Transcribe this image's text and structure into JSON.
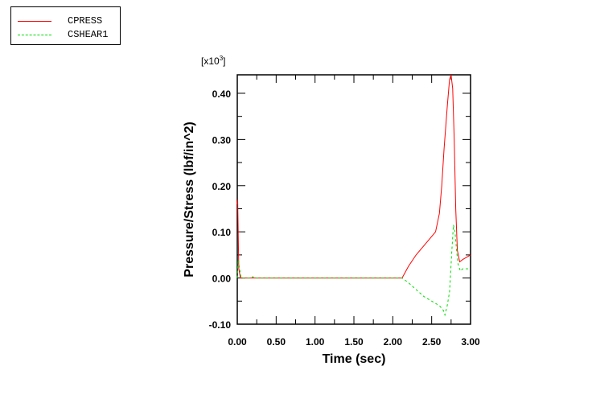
{
  "chart_data": {
    "type": "line",
    "title": "",
    "xlabel": "Time (sec)",
    "ylabel": "Pressure/Stress (lbf/in^2)",
    "y_multiplier": "[x10",
    "y_multiplier_exp": "3",
    "xlim": [
      0,
      3.0
    ],
    "ylim": [
      -0.1,
      0.44
    ],
    "xticks": [
      "0.00",
      "0.50",
      "1.00",
      "1.50",
      "2.00",
      "2.50",
      "3.00"
    ],
    "yticks": [
      "-0.10",
      "0.00",
      "0.10",
      "0.20",
      "0.30",
      "0.40"
    ],
    "legend_position": "top-left",
    "series": [
      {
        "name": "CPRESS",
        "color": "#ff0000",
        "style": "solid",
        "x": [
          0,
          0.005,
          0.02,
          0.04,
          2.12,
          2.2,
          2.3,
          2.4,
          2.5,
          2.55,
          2.6,
          2.63,
          2.66,
          2.7,
          2.73,
          2.75,
          2.77,
          2.79,
          2.81,
          2.83,
          2.86,
          2.9,
          3.0
        ],
        "y": [
          0.16,
          0.17,
          0.02,
          0,
          0,
          0.025,
          0.05,
          0.07,
          0.09,
          0.1,
          0.14,
          0.2,
          0.28,
          0.37,
          0.43,
          0.44,
          0.41,
          0.3,
          0.15,
          0.06,
          0.035,
          0.04,
          0.05
        ]
      },
      {
        "name": "CSHEAR1",
        "color": "#00dd00",
        "style": "dashed",
        "x": [
          0,
          0.01,
          0.03,
          0.05,
          0.18,
          0.2,
          0.22,
          2.12,
          2.2,
          2.3,
          2.4,
          2.5,
          2.6,
          2.65,
          2.67,
          2.7,
          2.73,
          2.76,
          2.78,
          2.8,
          2.82,
          2.84,
          2.87,
          2.9,
          3.0
        ],
        "y": [
          0.0,
          0.04,
          0.02,
          0,
          0,
          0.003,
          0,
          0,
          -0.01,
          -0.025,
          -0.04,
          -0.05,
          -0.06,
          -0.07,
          -0.08,
          -0.06,
          -0.03,
          0.06,
          0.115,
          0.1,
          0.06,
          0.03,
          0.015,
          0.02,
          0.02
        ]
      }
    ]
  }
}
